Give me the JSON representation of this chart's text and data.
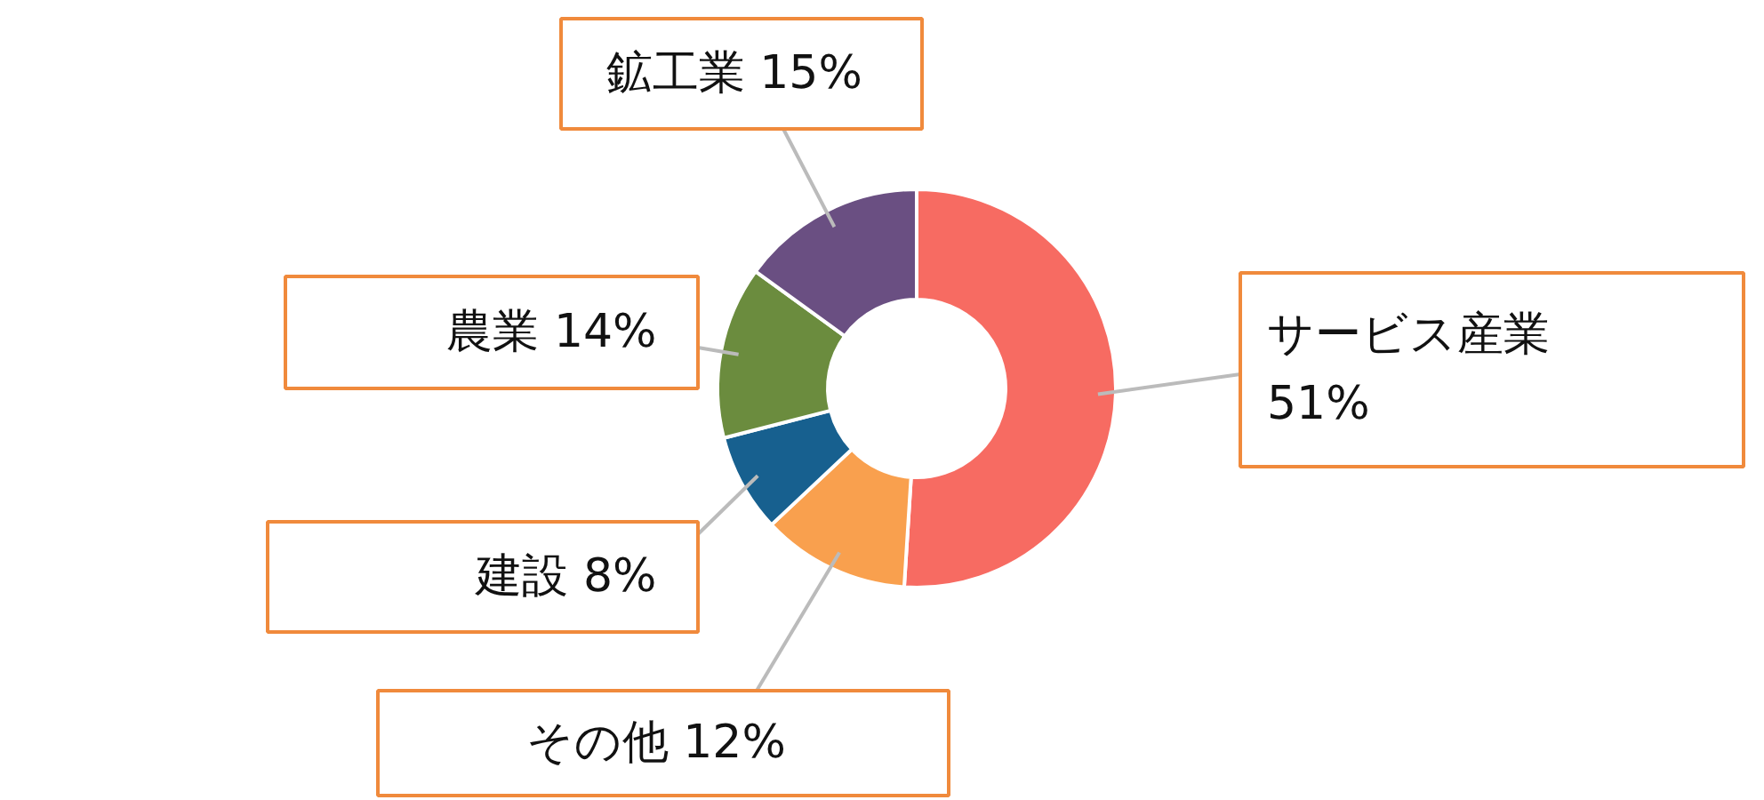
{
  "chart_data": {
    "type": "donut",
    "categories": [
      "サービス産業",
      "その他",
      "建設",
      "農業",
      "鉱工業"
    ],
    "values": [
      51,
      12,
      8,
      14,
      15
    ],
    "value_labels": [
      "51%",
      "12%",
      "8%",
      "14%",
      "15%"
    ],
    "colors": [
      "#f76b62",
      "#f9a04e",
      "#17608f",
      "#6b8c3e",
      "#6a4f82"
    ]
  }
}
